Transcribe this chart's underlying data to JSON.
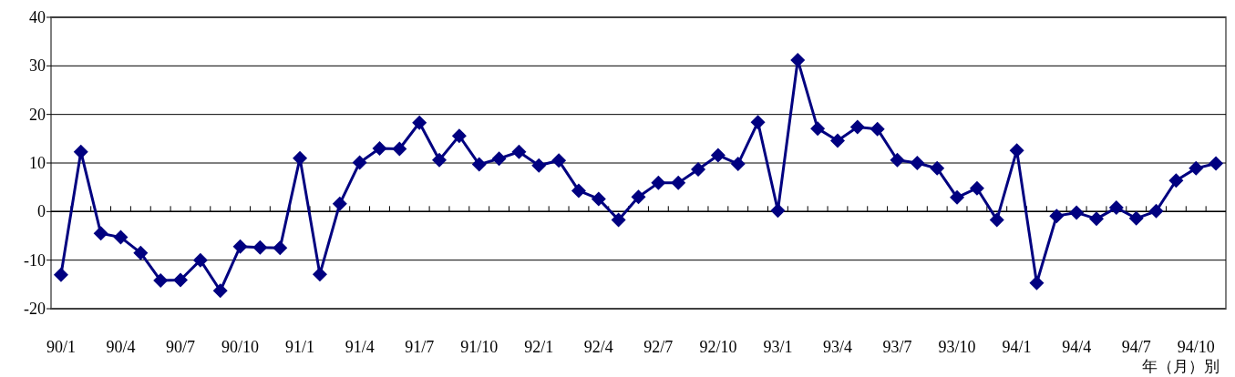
{
  "chart_data": {
    "type": "line",
    "xlabel": "年（月）別",
    "categories": [
      "90/1",
      null,
      null,
      "90/4",
      null,
      null,
      "90/7",
      null,
      null,
      "90/10",
      null,
      null,
      "91/1",
      null,
      null,
      "91/4",
      null,
      null,
      "91/7",
      null,
      null,
      "91/10",
      null,
      null,
      "92/1",
      null,
      null,
      "92/4",
      null,
      null,
      "92/7",
      null,
      null,
      "92/10",
      null,
      null,
      "93/1",
      null,
      null,
      "93/4",
      null,
      null,
      "93/7",
      null,
      null,
      "93/10",
      null,
      null,
      "94/1",
      null,
      null,
      "94/4",
      null,
      null,
      "94/7",
      null,
      null,
      "94/10",
      null
    ],
    "series": [
      {
        "color": "#000080",
        "values": [
          -13,
          12.3,
          -4.5,
          -5.3,
          -8.5,
          -14.2,
          -14.1,
          -10,
          -16.3,
          -7.2,
          -7.4,
          -7.5,
          11,
          -12.9,
          1.6,
          10.1,
          13,
          12.9,
          18.3,
          10.6,
          15.6,
          9.7,
          10.9,
          12.3,
          9.5,
          10.5,
          4.3,
          2.6,
          -1.7,
          3,
          5.9,
          5.9,
          8.7,
          11.6,
          9.8,
          18.4,
          0.2,
          31.2,
          17.1,
          14.6,
          17.4,
          17,
          10.6,
          10,
          8.9,
          2.9,
          4.8,
          -1.7,
          12.6,
          -14.7,
          -0.9,
          -0.2,
          -1.5,
          0.8,
          -1.4,
          0.1,
          6.4,
          8.9,
          9.9
        ]
      }
    ],
    "ylim": [
      -20,
      40
    ],
    "yticks": [
      -20,
      -10,
      0,
      10,
      20,
      30,
      40
    ],
    "grid": "y",
    "marker": "diamond",
    "line_style": "solid"
  }
}
